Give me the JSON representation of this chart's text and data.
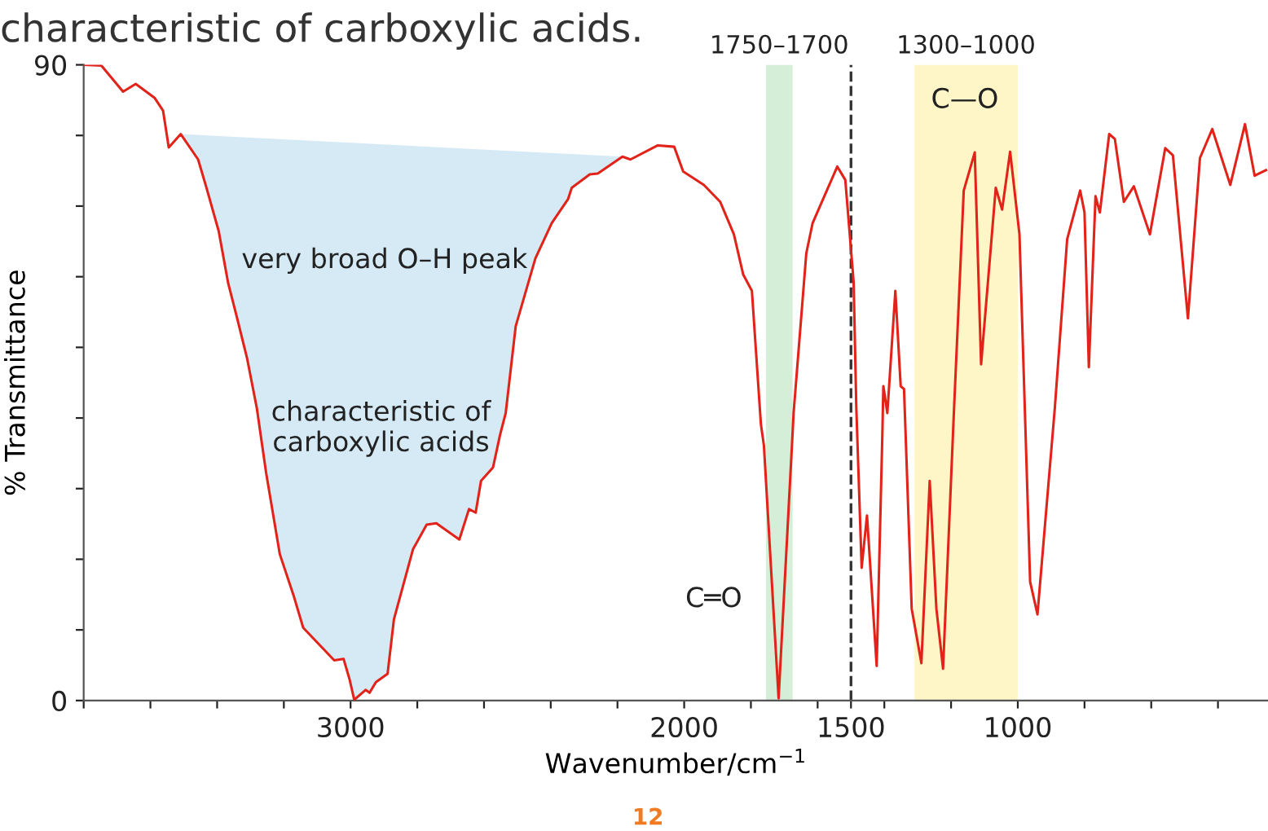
{
  "chart_data": {
    "type": "line",
    "title": "characteristic of carboxylic acids.",
    "xlabel": "Wavenumber/cm$^{−1}$",
    "ylabel": "% Transmittance",
    "xlim": [
      3800,
      250
    ],
    "ylim": [
      0,
      90
    ],
    "xticks": [
      {
        "value": 3800,
        "label": null
      },
      {
        "value": 3600,
        "label": null
      },
      {
        "value": 3400,
        "label": null
      },
      {
        "value": 3200,
        "label": null
      },
      3000,
      {
        "value": 2800,
        "label": null
      },
      {
        "value": 2600,
        "label": null
      },
      {
        "value": 2400,
        "label": null
      },
      {
        "value": 2200,
        "label": null
      },
      2000,
      {
        "value": 1800,
        "label": null
      },
      {
        "value": 1600,
        "label": null
      },
      1500,
      {
        "value": 1400,
        "label": null
      },
      {
        "value": 1200,
        "label": null
      },
      1000,
      {
        "value": 800,
        "label": null
      },
      {
        "value": 600,
        "label": null
      },
      {
        "value": 400,
        "label": null
      }
    ],
    "yticks": [
      0,
      {
        "value": 10,
        "label": null
      },
      {
        "value": 20,
        "label": null
      },
      {
        "value": 30,
        "label": null
      },
      {
        "value": 40,
        "label": null
      },
      {
        "value": 50,
        "label": null
      },
      {
        "value": 60,
        "label": null
      },
      {
        "value": 70,
        "label": null
      },
      {
        "value": 80,
        "label": null
      },
      90
    ],
    "grid": false,
    "legend": false,
    "series": [
      {
        "color": "#e2231a",
        "x": [
          3800,
          3747,
          3682,
          3644,
          3587,
          3562,
          3545,
          3509,
          3457,
          3432,
          3395,
          3367,
          3342,
          3310,
          3281,
          3253,
          3212,
          3171,
          3142,
          3049,
          3021,
          3003,
          2989,
          2955,
          2943,
          2924,
          2889,
          2870,
          2813,
          2772,
          2743,
          2674,
          2645,
          2625,
          2609,
          2573,
          2552,
          2535,
          2505,
          2446,
          2397,
          2348,
          2337,
          2283,
          2259,
          2185,
          2161,
          2079,
          2030,
          2003,
          1941,
          1892,
          1851,
          1823,
          1797,
          1770,
          1761,
          1717,
          1677,
          1672,
          1634,
          1615,
          1541,
          1517,
          1492,
          1484,
          1468,
          1452,
          1423,
          1406,
          1403,
          1391,
          1367,
          1351,
          1341,
          1318,
          1289,
          1264,
          1244,
          1224,
          1191,
          1162,
          1129,
          1110,
          1066,
          1047,
          1023,
          995,
          963,
          941,
          889,
          852,
          813,
          800,
          787,
          767,
          754,
          726,
          709,
          682,
          652,
          604,
          558,
          535,
          490,
          454,
          417,
          363,
          319,
          290,
          256
        ],
        "values": [
          90.0,
          89.9,
          86.2,
          87.3,
          85.3,
          83.5,
          78.3,
          80.2,
          76.6,
          72.6,
          66.4,
          59.1,
          54.5,
          48.4,
          41.4,
          32.2,
          20.7,
          14.9,
          10.3,
          5.7,
          5.9,
          3.0,
          0.1,
          1.5,
          1.1,
          2.6,
          3.8,
          11.5,
          21.4,
          24.9,
          25.1,
          22.8,
          27.1,
          26.6,
          31.1,
          33.0,
          37.6,
          40.7,
          53.0,
          62.6,
          67.6,
          71.0,
          72.6,
          74.5,
          74.6,
          77.0,
          76.6,
          78.6,
          78.4,
          74.9,
          73.0,
          70.6,
          66.0,
          60.3,
          58.0,
          39.1,
          36.1,
          0.3,
          36.1,
          40.7,
          63.3,
          67.6,
          75.6,
          73.7,
          59.2,
          41.4,
          18.8,
          26.2,
          4.9,
          37.6,
          44.5,
          40.7,
          58.0,
          44.5,
          44.1,
          13.0,
          5.3,
          31.1,
          13.0,
          4.5,
          41.4,
          72.2,
          77.6,
          47.6,
          72.6,
          69.5,
          77.7,
          66.0,
          16.8,
          12.2,
          41.4,
          65.3,
          72.2,
          69.1,
          47.2,
          71.4,
          69.1,
          80.2,
          79.5,
          70.6,
          72.8,
          66.0,
          78.2,
          77.2,
          54.1,
          76.8,
          80.9,
          73.0,
          81.6,
          74.3,
          75.1
        ]
      }
    ],
    "bands": [
      {
        "axis": "x",
        "from": 1755,
        "to": 1675,
        "label": "1750–1700",
        "color": "#d4eed8"
      },
      {
        "axis": "x",
        "from": 1310,
        "to": 1000,
        "label": "1300–1000",
        "color": "#fff6c8"
      }
    ],
    "ref_lines": [
      {
        "axis": "x",
        "value": 1500,
        "color": "#333333",
        "line_style": "dashed"
      }
    ],
    "annotations": [
      "very broad O–H peak",
      "characteristic of\ncarboxylic acids",
      "C═O",
      "C—O",
      "12"
    ]
  }
}
